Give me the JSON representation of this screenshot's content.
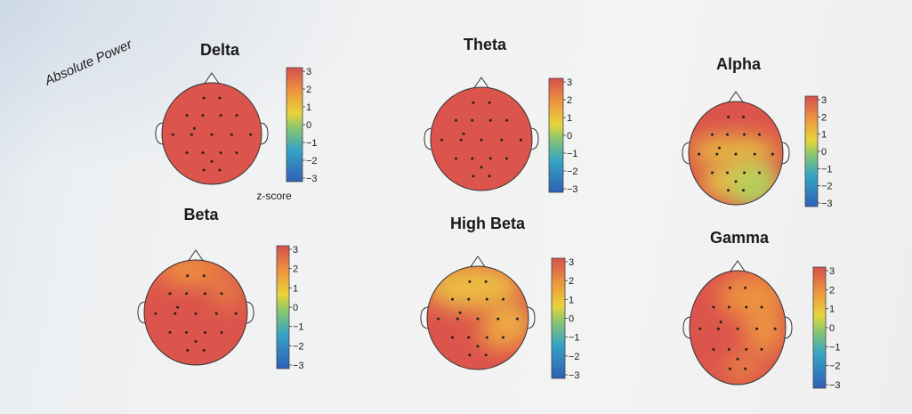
{
  "section_title": "Absolute Power",
  "colorbar": {
    "ticks": [
      "3",
      "2",
      "1",
      "0",
      "−1",
      "−2",
      "−3"
    ],
    "unit_label": "z-score",
    "colors": [
      "#d6504c",
      "#ee9a3e",
      "#e8d43a",
      "#8ec86c",
      "#36a4c4",
      "#2f5fb7"
    ]
  },
  "maps": [
    {
      "band": "Delta"
    },
    {
      "band": "Theta"
    },
    {
      "band": "Alpha"
    },
    {
      "band": "Beta"
    },
    {
      "band": "High Beta"
    },
    {
      "band": "Gamma"
    }
  ]
}
